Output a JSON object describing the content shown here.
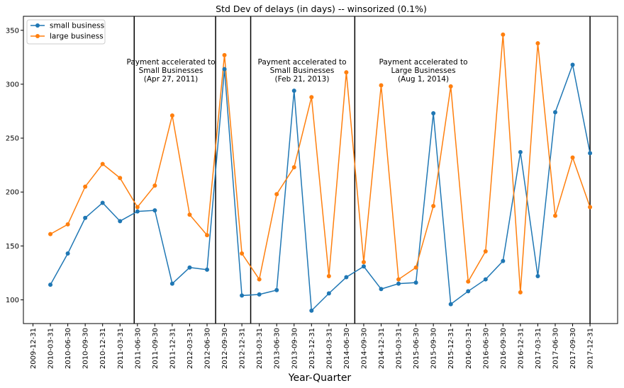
{
  "chart_data": {
    "type": "line",
    "title": "Std Dev of delays (in days) -- winsorized (0.1%)",
    "xlabel": "Year-Quarter",
    "ylabel": "",
    "ylim": [
      78,
      363
    ],
    "yticks": [
      100,
      150,
      200,
      250,
      300,
      350
    ],
    "grid": false,
    "legend_position": "top-left",
    "categories": [
      "2009-12-31",
      "2010-03-31",
      "2010-06-30",
      "2010-09-30",
      "2010-12-31",
      "2011-03-31",
      "2011-06-30",
      "2011-09-30",
      "2011-12-31",
      "2012-03-31",
      "2012-06-30",
      "2012-09-30",
      "2012-12-31",
      "2013-03-31",
      "2013-06-30",
      "2013-09-30",
      "2013-12-31",
      "2014-03-31",
      "2014-06-30",
      "2014-09-30",
      "2014-12-31",
      "2015-03-31",
      "2015-06-30",
      "2015-09-30",
      "2015-12-31",
      "2016-03-31",
      "2016-06-30",
      "2016-09-30",
      "2016-12-31",
      "2017-03-31",
      "2017-06-30",
      "2017-09-30",
      "2017-12-31"
    ],
    "series": [
      {
        "name": "small business",
        "color": "#1f77b4",
        "values": [
          null,
          114,
          143,
          176,
          190,
          173,
          182,
          183,
          115,
          130,
          128,
          314,
          104,
          105,
          109,
          294,
          90,
          106,
          121,
          131,
          110,
          115,
          116,
          273,
          96,
          108,
          119,
          136,
          237,
          122,
          274,
          318,
          236
        ]
      },
      {
        "name": "large business",
        "color": "#ff7f0e",
        "values": [
          null,
          161,
          170,
          205,
          226,
          213,
          186,
          206,
          271,
          179,
          160,
          327,
          143,
          119,
          198,
          223,
          288,
          122,
          311,
          135,
          299,
          119,
          130,
          187,
          298,
          117,
          145,
          346,
          107,
          338,
          178,
          232,
          186
        ]
      }
    ],
    "vertical_lines": [
      {
        "x": "2011-06-15"
      },
      {
        "x": "2012-08-15"
      },
      {
        "x": "2013-02-15"
      },
      {
        "x": "2014-08-15"
      },
      {
        "x": "2017-12-31"
      }
    ],
    "annotations": [
      {
        "lines": [
          "Payment accelerated to",
          "Small Businesses",
          "(Apr 27, 2011)"
        ]
      },
      {
        "lines": [
          "Payment accelerated to",
          "Small Businesses",
          "(Feb 21, 2013)"
        ]
      },
      {
        "lines": [
          "Payment accelerated to",
          "Large Businesses",
          "(Aug 1, 2014)"
        ]
      }
    ]
  }
}
